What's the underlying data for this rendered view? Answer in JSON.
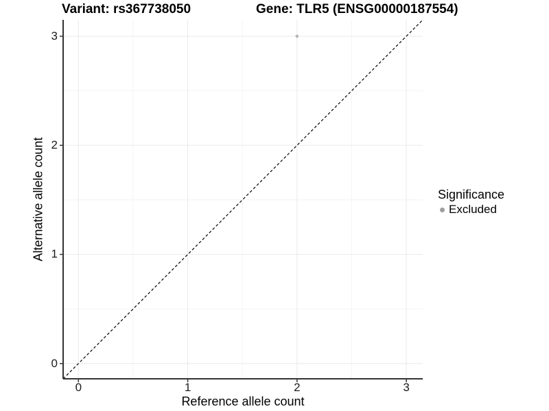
{
  "titles": {
    "variant": "Variant: rs367738050",
    "gene": "Gene: TLR5 (ENSG00000187554)"
  },
  "chart_data": {
    "type": "scatter",
    "xlabel": "Reference allele count",
    "ylabel": "Alternative allele count",
    "xlim": [
      -0.14,
      3.15
    ],
    "ylim": [
      -0.14,
      3.15
    ],
    "x_ticks": [
      0,
      1,
      2,
      3
    ],
    "y_ticks": [
      0,
      1,
      2,
      3
    ],
    "x_minor_ticks": [
      0.5,
      1.5,
      2.5
    ],
    "y_minor_ticks": [
      0.5,
      1.5,
      2.5
    ],
    "grid": true,
    "points": [
      {
        "x": 2,
        "y": 3,
        "series": "Excluded"
      }
    ],
    "reference_line": {
      "type": "identity",
      "style": "dashed",
      "from": [
        -0.14,
        -0.14
      ],
      "to": [
        3.15,
        3.15
      ],
      "color": "#000000"
    },
    "legend": {
      "title": "Significance",
      "position": "right",
      "items": [
        {
          "label": "Excluded",
          "color": "#9e9e9e"
        }
      ]
    },
    "colors": {
      "point": "#b5b5b5",
      "grid_major": "#e9e9e9",
      "grid_minor": "#f4f4f4",
      "axis_line": "#333333",
      "tick_mark": "#333333"
    },
    "point_radius": 2.3,
    "legend_point_radius": 3.5
  }
}
